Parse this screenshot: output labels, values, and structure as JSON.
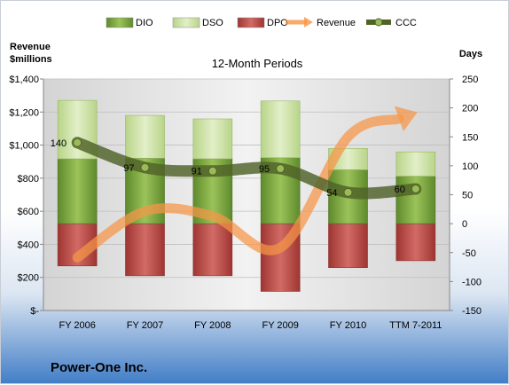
{
  "chart_data": {
    "type": "bar",
    "title": "12-Month Periods",
    "company": "Power-One Inc.",
    "left_axis_label": [
      "Revenue",
      "$millions"
    ],
    "right_axis_label": "Days",
    "categories": [
      "FY 2006",
      "FY 2007",
      "FY 2008",
      "FY 2009",
      "FY 2010",
      "TTM 7-2011"
    ],
    "left_axis": {
      "min": 0,
      "max": 1400,
      "step": 200,
      "tick_labels": [
        "$-",
        "$200",
        "$400",
        "$600",
        "$800",
        "$1,000",
        "$1,200",
        "$1,400"
      ]
    },
    "right_axis": {
      "min": -150,
      "max": 250,
      "step": 50,
      "tick_labels": [
        "-150",
        "-100",
        "-50",
        "0",
        "50",
        "100",
        "150",
        "200",
        "250"
      ]
    },
    "legend": [
      "DIO",
      "DSO",
      "DPO",
      "Revenue",
      "CCC"
    ],
    "legend_position": "top",
    "series": [
      {
        "name": "DPO",
        "stack": "negative",
        "axis": "right",
        "color": "#c0504d",
        "values": [
          -73,
          -90,
          -90,
          -117,
          -76,
          -64
        ]
      },
      {
        "name": "DIO",
        "stack": "positive",
        "axis": "right",
        "color": "#77a23c",
        "values": [
          112,
          113,
          112,
          114,
          93,
          82
        ]
      },
      {
        "name": "DSO",
        "stack": "positive",
        "axis": "right",
        "color": "#c4dd9a",
        "values": [
          101,
          74,
          69,
          98,
          37,
          42
        ]
      },
      {
        "name": "Revenue",
        "type": "line",
        "axis": "left",
        "color": "#f79646",
        "values": [
          320,
          600,
          570,
          380,
          1050,
          1195
        ]
      },
      {
        "name": "CCC",
        "type": "line",
        "axis": "right",
        "color": "#4f6228",
        "values": [
          140,
          97,
          91,
          95,
          54,
          60
        ],
        "labels": [
          "140",
          "97",
          "91",
          "95",
          "54",
          "60"
        ]
      }
    ],
    "grid": true
  }
}
